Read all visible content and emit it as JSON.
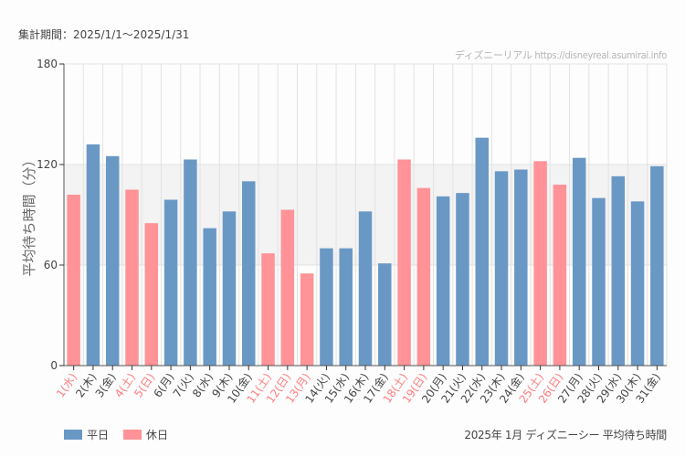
{
  "period_label": "集計期間：2025/1/1〜2025/1/31",
  "credit": "ディズニーリアル https://disneyreal.asumirai.info",
  "footer_title": "2025年 1月 ディズニーシー 平均待ち時間",
  "colors": {
    "weekday": "#6a98c5",
    "holiday": "#ff9397",
    "holiday_label": "#ff7b7f",
    "band": "#f3f3f3",
    "grid": "#e2e2e2"
  },
  "legend": [
    {
      "label": "平日",
      "key": "weekday"
    },
    {
      "label": "休日",
      "key": "holiday"
    }
  ],
  "chart_data": {
    "type": "bar",
    "title": "2025年 1月 ディズニーシー 平均待ち時間",
    "xlabel": "",
    "ylabel": "平均待ち時間（分）",
    "ylim": [
      0,
      180
    ],
    "yticks": [
      "0",
      "60",
      "120",
      "180"
    ],
    "grid": true,
    "legend_position": "bottom-left",
    "categories": [
      "1(水)",
      "2(木)",
      "3(金)",
      "4(土)",
      "5(日)",
      "6(月)",
      "7(火)",
      "8(水)",
      "9(木)",
      "10(金)",
      "11(土)",
      "12(日)",
      "13(月)",
      "14(火)",
      "15(水)",
      "16(木)",
      "17(金)",
      "18(土)",
      "19(日)",
      "20(月)",
      "21(火)",
      "22(水)",
      "23(木)",
      "24(金)",
      "25(土)",
      "26(日)",
      "27(月)",
      "28(火)",
      "29(水)",
      "30(木)",
      "31(金)"
    ],
    "values": [
      102,
      132,
      125,
      105,
      85,
      99,
      123,
      82,
      92,
      110,
      67,
      93,
      55,
      70,
      70,
      92,
      61,
      123,
      106,
      101,
      103,
      136,
      116,
      117,
      122,
      108,
      124,
      100,
      113,
      98,
      119
    ],
    "day_type": [
      "holiday",
      "weekday",
      "weekday",
      "holiday",
      "holiday",
      "weekday",
      "weekday",
      "weekday",
      "weekday",
      "weekday",
      "holiday",
      "holiday",
      "holiday",
      "weekday",
      "weekday",
      "weekday",
      "weekday",
      "holiday",
      "holiday",
      "weekday",
      "weekday",
      "weekday",
      "weekday",
      "weekday",
      "holiday",
      "holiday",
      "weekday",
      "weekday",
      "weekday",
      "weekday",
      "weekday"
    ]
  }
}
